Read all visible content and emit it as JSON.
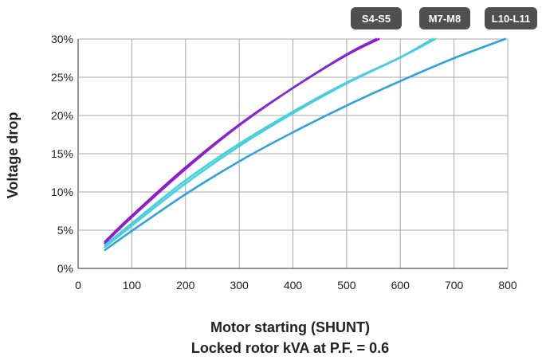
{
  "chart_data": {
    "type": "line",
    "title": "",
    "xlabel_lines": [
      "Motor starting (SHUNT)",
      "Locked rotor kVA at P.F. = 0.6"
    ],
    "ylabel": "Voltage drop",
    "xlim": [
      0,
      800
    ],
    "ylim": [
      0,
      30
    ],
    "x_ticks": [
      "0",
      "100",
      "200",
      "300",
      "400",
      "500",
      "600",
      "700",
      "800"
    ],
    "y_ticks": [
      "0%",
      "5%",
      "10%",
      "15%",
      "20%",
      "25%",
      "30%"
    ],
    "grid": true,
    "legend_position": "top-right",
    "series": [
      {
        "name": "S4-S5",
        "color": "#b000c8",
        "x": [
          50,
          100,
          200,
          300,
          400,
          500,
          560
        ],
        "y": [
          3.5,
          6.9,
          13.2,
          18.8,
          23.6,
          27.9,
          30.0
        ]
      },
      {
        "name": "S4-S5",
        "color": "#7b2bd6",
        "x": [
          50,
          100,
          200,
          300,
          400,
          500,
          555
        ],
        "y": [
          3.3,
          6.7,
          13.0,
          18.7,
          23.6,
          28.0,
          30.0
        ]
      },
      {
        "name": "M7-M8",
        "color": "#3ed6d0",
        "x": [
          50,
          100,
          200,
          300,
          400,
          500,
          600,
          665
        ],
        "y": [
          3.0,
          5.9,
          11.5,
          16.3,
          20.5,
          24.3,
          27.6,
          30.0
        ]
      },
      {
        "name": "M7-M8",
        "color": "#4ec9e8",
        "x": [
          50,
          100,
          200,
          300,
          400,
          500,
          600,
          660
        ],
        "y": [
          2.8,
          5.6,
          11.1,
          16.0,
          20.3,
          24.2,
          27.6,
          30.0
        ]
      },
      {
        "name": "L10-L11",
        "color": "#2fa3e0",
        "x": [
          50,
          100,
          200,
          300,
          400,
          500,
          600,
          700,
          795
        ],
        "y": [
          2.4,
          4.9,
          9.7,
          14.0,
          17.8,
          21.3,
          24.5,
          27.5,
          30.0
        ]
      }
    ],
    "legend_badges": [
      {
        "label": "S4-S5",
        "color": "#505050"
      },
      {
        "label": "M7-M8",
        "color": "#505050"
      },
      {
        "label": "L10-L11",
        "color": "#505050"
      }
    ]
  }
}
